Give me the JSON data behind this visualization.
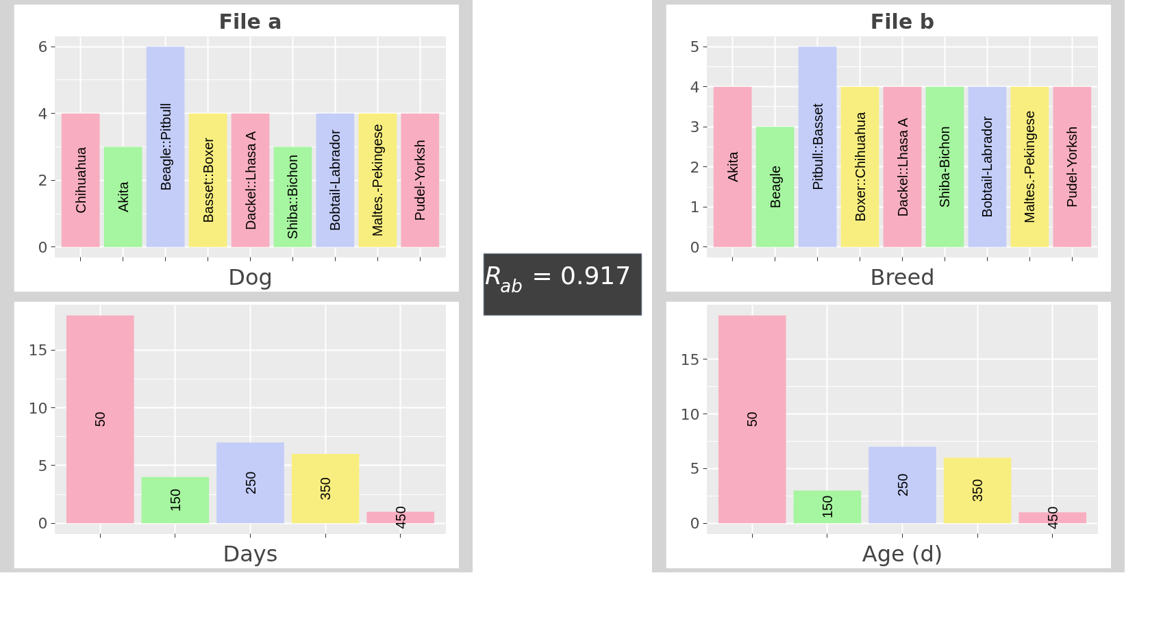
{
  "chart_data": [
    {
      "type": "bar",
      "title": "File a",
      "xlabel": "Dog",
      "categories": [
        "Chihuahua",
        "Akita",
        "Beagle::Pitbull",
        "Basset::Boxer",
        "Dackel::Lhasa A",
        "Shiba::Bichon",
        "Bobtail-Labrador",
        "Maltes.-Pekingese",
        "Pudel-Yorksh"
      ],
      "values": [
        4,
        3,
        6,
        4,
        4,
        3,
        4,
        4,
        4
      ],
      "colors": [
        "#f8aec0",
        "#a6f5a0",
        "#c3cdf8",
        "#f8ee80",
        "#f8aec0",
        "#a6f5a0",
        "#c3cdf8",
        "#f8ee80",
        "#f8aec0"
      ],
      "ylim": [
        -0.3,
        6.3
      ],
      "yticks": [
        0,
        2,
        4,
        6
      ],
      "grid": true,
      "tick_labels": "y"
    },
    {
      "type": "bar",
      "title": "File b",
      "xlabel": "Breed",
      "categories": [
        "Akita",
        "Beagle",
        "Pitbull::Basset",
        "Boxer::Chihuahua",
        "Dackel::Lhasa A",
        "Shiba-Bichon",
        "Bobtail-Labrador",
        "Maltes.-Pekingese",
        "Pudel-Yorksh"
      ],
      "values": [
        4,
        3,
        5,
        4,
        4,
        4,
        4,
        4,
        4
      ],
      "colors": [
        "#f8aec0",
        "#a6f5a0",
        "#c3cdf8",
        "#f8ee80",
        "#f8aec0",
        "#a6f5a0",
        "#c3cdf8",
        "#f8ee80",
        "#f8aec0"
      ],
      "ylim": [
        -0.25,
        5.25
      ],
      "yticks": [
        0,
        1,
        2,
        3,
        4,
        5
      ],
      "grid": true,
      "tick_labels": "y"
    },
    {
      "type": "bar",
      "xlabel": "Days",
      "categories": [
        "50",
        "150",
        "250",
        "350",
        "450"
      ],
      "values": [
        18,
        4,
        7,
        6,
        1
      ],
      "colors": [
        "#f8aec0",
        "#a6f5a0",
        "#c3cdf8",
        "#f8ee80",
        "#f8aec0"
      ],
      "ylim": [
        -0.9,
        18.9
      ],
      "yticks": [
        0,
        5,
        10,
        15
      ],
      "grid": true,
      "tick_labels": "y"
    },
    {
      "type": "bar",
      "xlabel": "Age (d)",
      "categories": [
        "50",
        "150",
        "250",
        "350",
        "450"
      ],
      "values": [
        19,
        3,
        7,
        6,
        1
      ],
      "colors": [
        "#f8aec0",
        "#a6f5a0",
        "#c3cdf8",
        "#f8ee80",
        "#f8aec0"
      ],
      "ylim": [
        -0.95,
        19.95
      ],
      "yticks": [
        0,
        5,
        10,
        15
      ],
      "grid": true,
      "tick_labels": "y"
    },
    {
      "type": "other",
      "annotations": [
        "R$_{ab}$ = 0.917"
      ]
    }
  ]
}
